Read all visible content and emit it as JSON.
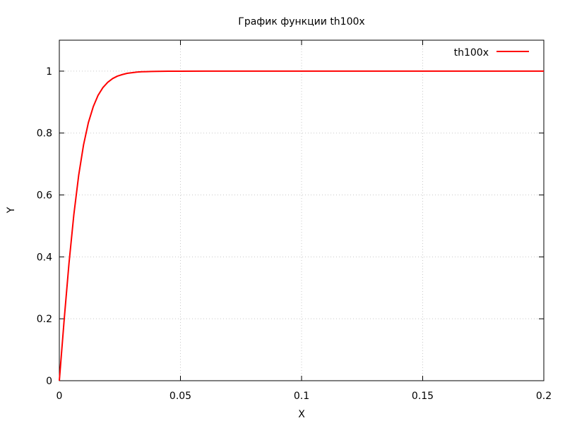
{
  "chart_data": {
    "type": "line",
    "title": "График функции th100x",
    "xlabel": "X",
    "ylabel": "Y",
    "xlim": [
      0,
      0.2
    ],
    "ylim": [
      0,
      1.1
    ],
    "x_ticks": [
      0,
      0.05,
      0.1,
      0.15,
      0.2
    ],
    "x_tick_labels": [
      "0",
      "0.05",
      "0.1",
      "0.15",
      "0.2"
    ],
    "y_ticks": [
      0,
      0.2,
      0.4,
      0.6,
      0.8,
      1
    ],
    "y_tick_labels": [
      "0",
      "0.2",
      "0.4",
      "0.6",
      "0.8",
      "1"
    ],
    "grid": true,
    "legend_position": "top-right",
    "series": [
      {
        "name": "th100x",
        "color": "#ff0000",
        "x": [
          0,
          0.002,
          0.004,
          0.006,
          0.008,
          0.01,
          0.012,
          0.014,
          0.016,
          0.018,
          0.02,
          0.022,
          0.024,
          0.026,
          0.028,
          0.03,
          0.032,
          0.034,
          0.036,
          0.038,
          0.04,
          0.045,
          0.05,
          0.06,
          0.08,
          0.1,
          0.12,
          0.14,
          0.16,
          0.18,
          0.2
        ],
        "y": [
          0,
          0.197,
          0.38,
          0.537,
          0.664,
          0.762,
          0.834,
          0.885,
          0.922,
          0.947,
          0.964,
          0.976,
          0.984,
          0.989,
          0.993,
          0.995,
          0.997,
          0.998,
          0.9985,
          0.999,
          0.9993,
          0.9998,
          0.9999,
          1,
          1,
          1,
          1,
          1,
          1,
          1,
          1
        ]
      }
    ]
  }
}
